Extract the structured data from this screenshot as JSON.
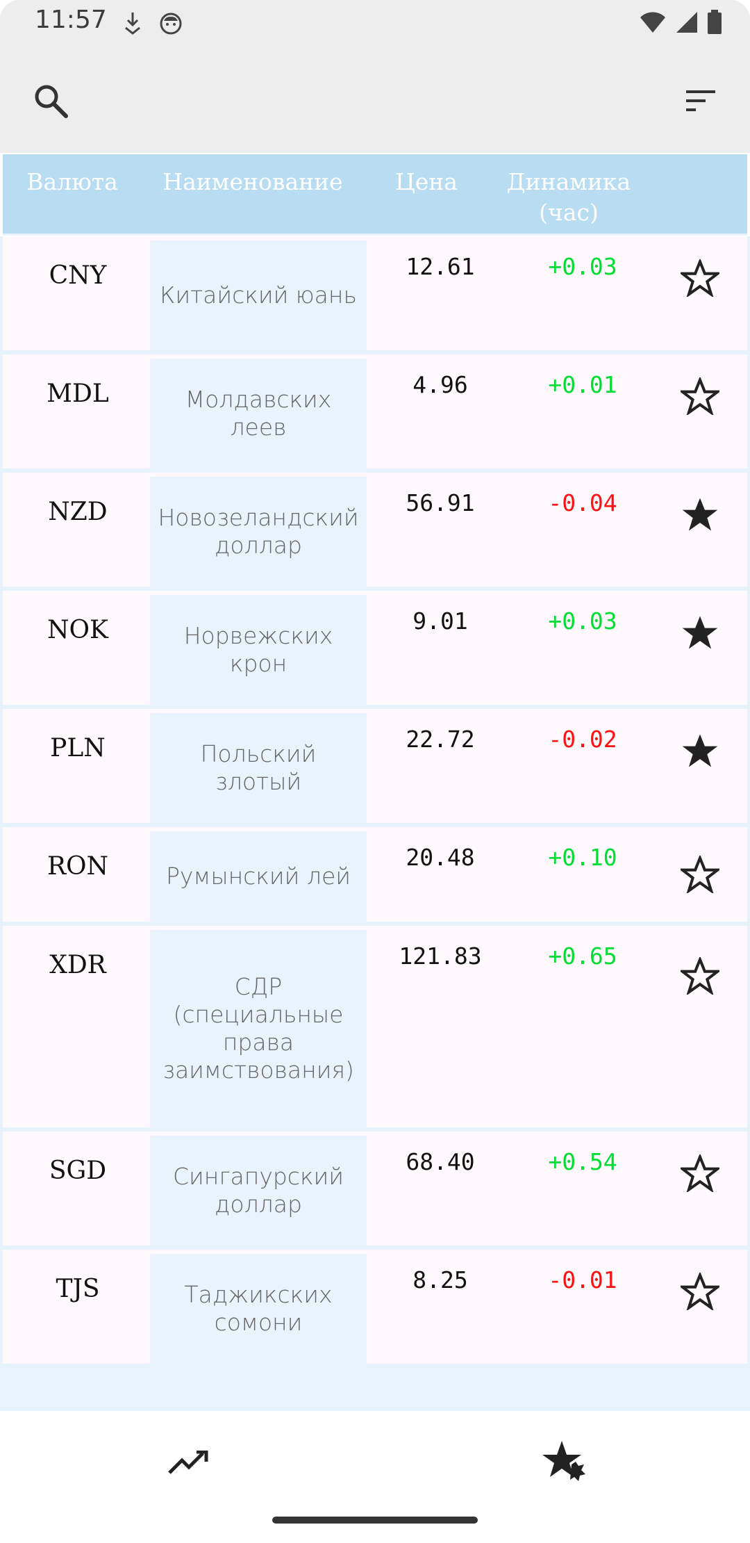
{
  "status_bar": {
    "time": "11:57",
    "icons": [
      "download-notification-icon",
      "cat-face-icon",
      "wifi-icon",
      "signal-icon",
      "battery-icon"
    ]
  },
  "app_bar": {
    "search_icon": "search-icon",
    "sort_icon": "sort-icon"
  },
  "table": {
    "headers": {
      "code": "Валюта",
      "name": "Наименование",
      "price": "Цена",
      "change_line1": "Динамика",
      "change_line2": "(час)"
    },
    "rows": [
      {
        "code": "CNY",
        "name": "Китайский юань",
        "price": "12.61",
        "change": "+0.03",
        "favorite": false
      },
      {
        "code": "MDL",
        "name": "Молдавских леев",
        "price": "4.96",
        "change": "+0.01",
        "favorite": false
      },
      {
        "code": "NZD",
        "name": "Новозеландский доллар",
        "price": "56.91",
        "change": "-0.04",
        "favorite": true
      },
      {
        "code": "NOK",
        "name": "Норвежских крон",
        "price": "9.01",
        "change": "+0.03",
        "favorite": true
      },
      {
        "code": "PLN",
        "name": "Польский злотый",
        "price": "22.72",
        "change": "-0.02",
        "favorite": true
      },
      {
        "code": "RON",
        "name": "Румынский лей",
        "price": "20.48",
        "change": "+0.10",
        "favorite": false
      },
      {
        "code": "XDR",
        "name": "СДР (специальные права заимствования)",
        "price": "121.83",
        "change": "+0.65",
        "favorite": false
      },
      {
        "code": "SGD",
        "name": "Сингапурский доллар",
        "price": "68.40",
        "change": "+0.54",
        "favorite": false
      },
      {
        "code": "TJS",
        "name": "Таджикских сомони",
        "price": "8.25",
        "change": "-0.01",
        "favorite": false
      }
    ]
  },
  "bottom_nav": {
    "items": [
      {
        "icon": "trending-up-icon"
      },
      {
        "icon": "favorites-star-icon"
      }
    ]
  },
  "colors": {
    "header_bg": "#b8dcf2",
    "name_cell_bg": "#eaf3fb",
    "positive": "#00dd33",
    "negative": "#ff1111"
  }
}
